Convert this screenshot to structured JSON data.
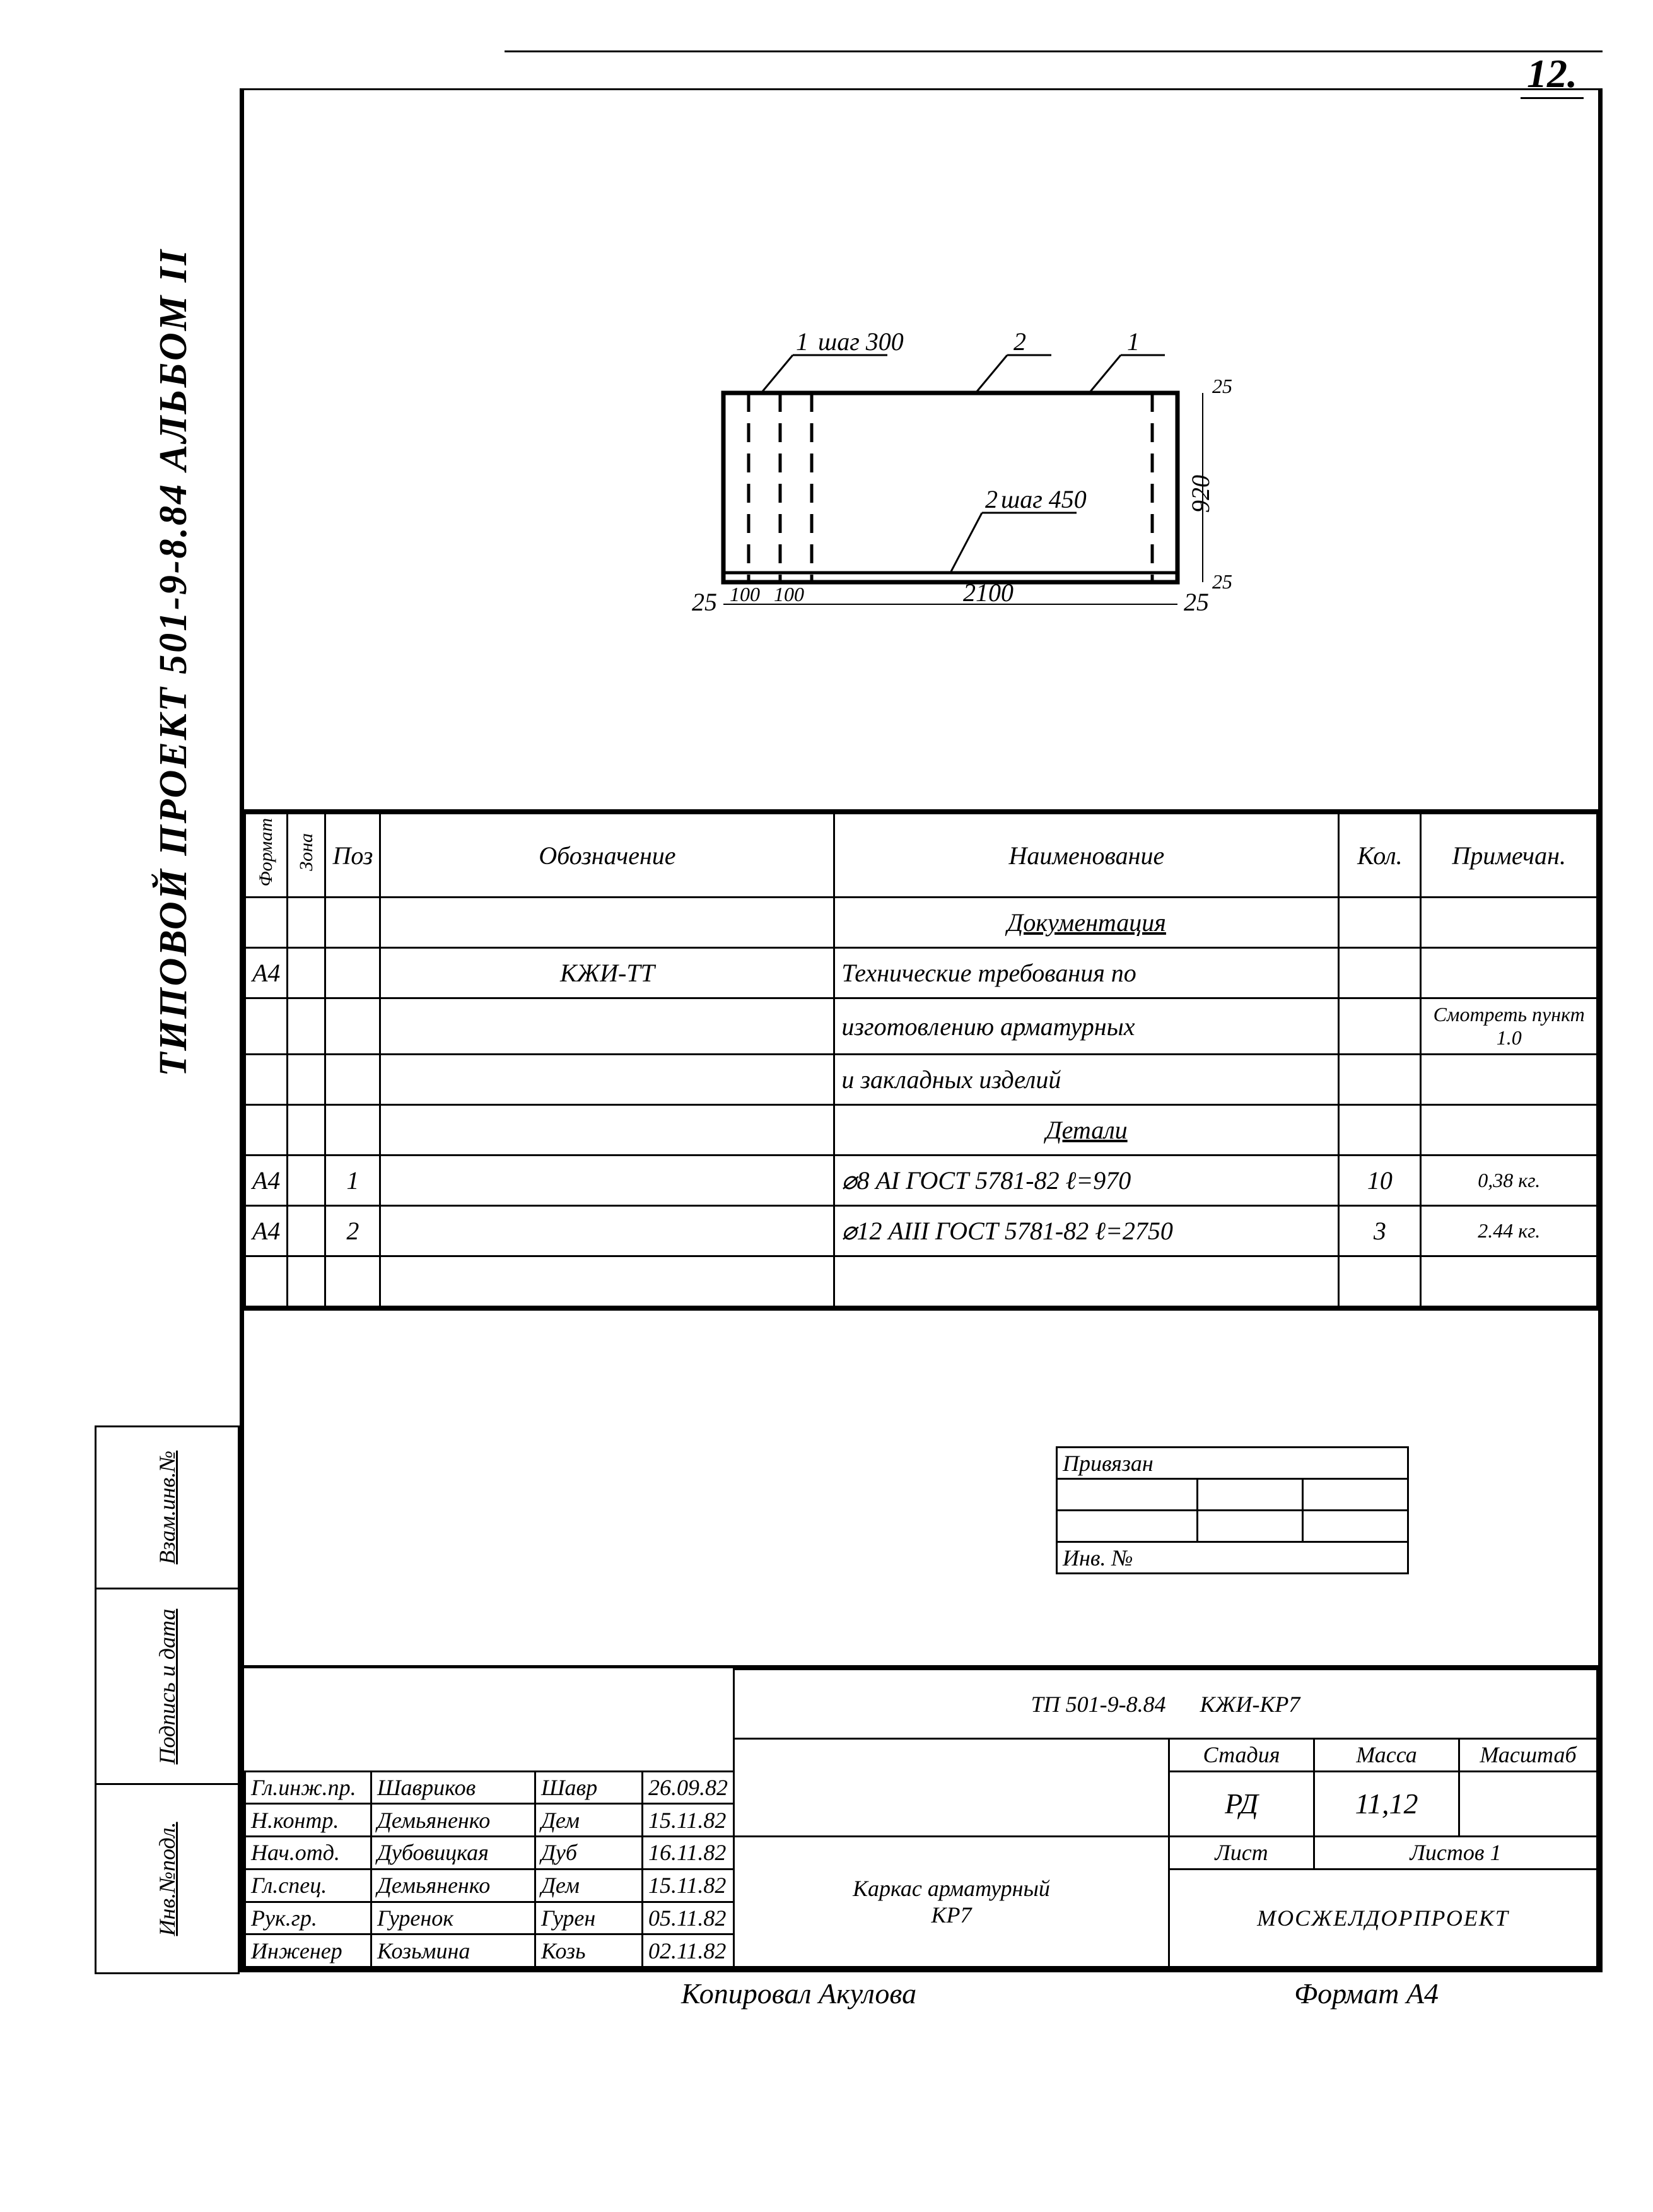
{
  "page_number": "12.",
  "vertical_title": "ТИПОВОЙ  ПРОЕКТ  501-9-8.84     АЛЬБОМ II",
  "side_stamp": [
    "Взам.инв.№",
    "Подпись и дата",
    "Инв.№подл."
  ],
  "drawing": {
    "callout1": "1",
    "callout2": "2",
    "step1": "шаг 300",
    "step2": "шаг 450",
    "dim_left": "25",
    "dim_100a": "100",
    "dim_100b": "100",
    "dim_2100": "2100",
    "dim_25r": "25",
    "dim_920": "920",
    "dim_25t": "25",
    "dim_25b": "25"
  },
  "spec": {
    "headers": {
      "format": "Формат",
      "zone": "Зона",
      "pos": "Поз",
      "designation": "Обозначение",
      "name": "Наименование",
      "qty": "Кол.",
      "note": "Примечан."
    },
    "rows": [
      {
        "f": "",
        "z": "",
        "p": "",
        "d": "",
        "n": "Документация",
        "q": "",
        "note": "",
        "n_underline": true
      },
      {
        "f": "А4",
        "z": "",
        "p": "",
        "d": "КЖИ-ТТ",
        "n": "Технические требования по",
        "q": "",
        "note": ""
      },
      {
        "f": "",
        "z": "",
        "p": "",
        "d": "",
        "n": "изготовлению арматурных",
        "q": "",
        "note": "Смотреть пункт 1.0"
      },
      {
        "f": "",
        "z": "",
        "p": "",
        "d": "",
        "n": "и закладных изделий",
        "q": "",
        "note": ""
      },
      {
        "f": "",
        "z": "",
        "p": "",
        "d": "",
        "n": "Детали",
        "q": "",
        "note": "",
        "n_underline": true
      },
      {
        "f": "А4",
        "z": "",
        "p": "1",
        "d": "",
        "n": "⌀8 АI ГОСТ 5781-82  ℓ=970",
        "q": "10",
        "note": "0,38 кг."
      },
      {
        "f": "А4",
        "z": "",
        "p": "2",
        "d": "",
        "n": "⌀12 АIII ГОСТ 5781-82 ℓ=2750",
        "q": "3",
        "note": "2.44 кг."
      },
      {
        "f": "",
        "z": "",
        "p": "",
        "d": "",
        "n": "",
        "q": "",
        "note": ""
      }
    ]
  },
  "priv": {
    "title": "Привязан",
    "inv": "Инв. №"
  },
  "titleblock": {
    "project_code": "ТП 501-9-8.84",
    "doc_code": "КЖИ-КР7",
    "roles": [
      {
        "role": "Гл.инж.пр.",
        "name": "Шавриков",
        "sig": "Шавр",
        "date": "26.09.82"
      },
      {
        "role": "Н.контр.",
        "name": "Демьяненко",
        "sig": "Дем",
        "date": "15.11.82"
      },
      {
        "role": "Нач.отд.",
        "name": "Дубовицкая",
        "sig": "Дуб",
        "date": "16.11.82"
      },
      {
        "role": "Гл.спец.",
        "name": "Демьяненко",
        "sig": "Дем",
        "date": "15.11.82"
      },
      {
        "role": "Рук.гр.",
        "name": "Гуренок",
        "sig": "Гурен",
        "date": "05.11.82"
      },
      {
        "role": "Инженер",
        "name": "Козьмина",
        "sig": "Козь",
        "date": "02.11.82"
      }
    ],
    "title_lines": [
      "Каркас арматурный",
      "КР7"
    ],
    "stage_h": "Стадия",
    "mass_h": "Масса",
    "scale_h": "Масштаб",
    "stage": "РД",
    "mass": "11,12",
    "scale": "",
    "sheet_h": "Лист",
    "sheets_h": "Листов 1",
    "org": "МОСЖЕЛДОРПРОЕКТ"
  },
  "footer": {
    "copied": "Копировал  Акулова",
    "format": "Формат А4"
  },
  "colors": {
    "ink": "#000000",
    "paper": "#ffffff"
  }
}
